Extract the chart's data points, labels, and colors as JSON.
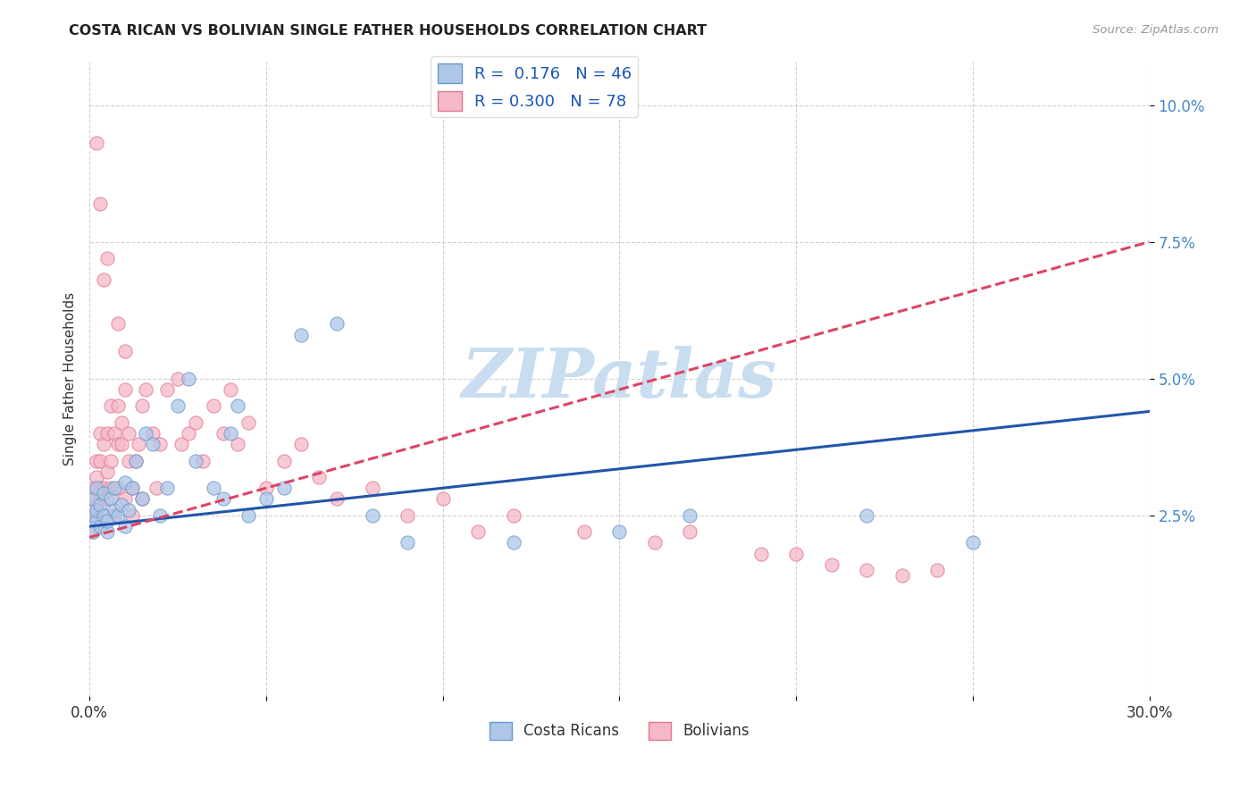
{
  "title": "COSTA RICAN VS BOLIVIAN SINGLE FATHER HOUSEHOLDS CORRELATION CHART",
  "source": "Source: ZipAtlas.com",
  "ylabel": "Single Father Households",
  "xlim": [
    0.0,
    0.3
  ],
  "ylim": [
    -0.008,
    0.108
  ],
  "ytick_vals": [
    0.025,
    0.05,
    0.075,
    0.1
  ],
  "ytick_labels": [
    "2.5%",
    "5.0%",
    "7.5%",
    "10.0%"
  ],
  "xtick_vals": [
    0.0,
    0.05,
    0.1,
    0.15,
    0.2,
    0.25,
    0.3
  ],
  "xtick_labels": [
    "0.0%",
    "",
    "",
    "",
    "",
    "",
    "30.0%"
  ],
  "background_color": "#ffffff",
  "watermark_text": "ZIPatlas",
  "watermark_color": "#c8ddf0",
  "costa_ricans_color": "#aec6e8",
  "costa_ricans_edge": "#6699cc",
  "bolivians_color": "#f5b8c8",
  "bolivians_edge": "#e07890",
  "cr_line_color": "#2255aa",
  "bo_line_color": "#dd4466",
  "cr_R": 0.176,
  "cr_N": 46,
  "bo_R": 0.3,
  "bo_N": 78,
  "cr_line_start_y": 0.023,
  "cr_line_end_y": 0.044,
  "bo_line_start_y": 0.021,
  "bo_line_end_y": 0.075,
  "cr_x": [
    0.001,
    0.001,
    0.001,
    0.002,
    0.002,
    0.002,
    0.003,
    0.003,
    0.004,
    0.004,
    0.005,
    0.005,
    0.006,
    0.007,
    0.007,
    0.008,
    0.009,
    0.01,
    0.01,
    0.011,
    0.012,
    0.013,
    0.015,
    0.016,
    0.018,
    0.02,
    0.022,
    0.025,
    0.028,
    0.03,
    0.035,
    0.038,
    0.04,
    0.042,
    0.045,
    0.05,
    0.055,
    0.06,
    0.07,
    0.08,
    0.09,
    0.12,
    0.15,
    0.17,
    0.22,
    0.25
  ],
  "cr_y": [
    0.025,
    0.022,
    0.028,
    0.024,
    0.026,
    0.03,
    0.023,
    0.027,
    0.025,
    0.029,
    0.022,
    0.024,
    0.028,
    0.026,
    0.03,
    0.025,
    0.027,
    0.023,
    0.031,
    0.026,
    0.03,
    0.035,
    0.028,
    0.04,
    0.038,
    0.025,
    0.03,
    0.045,
    0.05,
    0.035,
    0.03,
    0.028,
    0.04,
    0.045,
    0.025,
    0.028,
    0.03,
    0.058,
    0.06,
    0.025,
    0.02,
    0.02,
    0.022,
    0.025,
    0.025,
    0.02
  ],
  "bo_x": [
    0.001,
    0.001,
    0.001,
    0.001,
    0.002,
    0.002,
    0.002,
    0.002,
    0.003,
    0.003,
    0.003,
    0.003,
    0.004,
    0.004,
    0.004,
    0.005,
    0.005,
    0.005,
    0.006,
    0.006,
    0.006,
    0.007,
    0.007,
    0.008,
    0.008,
    0.008,
    0.009,
    0.009,
    0.01,
    0.01,
    0.011,
    0.011,
    0.012,
    0.012,
    0.013,
    0.014,
    0.015,
    0.015,
    0.016,
    0.018,
    0.019,
    0.02,
    0.022,
    0.025,
    0.026,
    0.028,
    0.03,
    0.032,
    0.035,
    0.038,
    0.04,
    0.042,
    0.045,
    0.05,
    0.055,
    0.06,
    0.065,
    0.07,
    0.08,
    0.09,
    0.1,
    0.11,
    0.12,
    0.14,
    0.16,
    0.17,
    0.19,
    0.2,
    0.21,
    0.22,
    0.23,
    0.24,
    0.01,
    0.008,
    0.005,
    0.003,
    0.002,
    0.004
  ],
  "bo_y": [
    0.028,
    0.025,
    0.03,
    0.022,
    0.027,
    0.032,
    0.025,
    0.035,
    0.028,
    0.04,
    0.03,
    0.035,
    0.025,
    0.03,
    0.038,
    0.028,
    0.033,
    0.04,
    0.045,
    0.03,
    0.035,
    0.04,
    0.025,
    0.038,
    0.045,
    0.03,
    0.038,
    0.042,
    0.028,
    0.048,
    0.035,
    0.04,
    0.025,
    0.03,
    0.035,
    0.038,
    0.045,
    0.028,
    0.048,
    0.04,
    0.03,
    0.038,
    0.048,
    0.05,
    0.038,
    0.04,
    0.042,
    0.035,
    0.045,
    0.04,
    0.048,
    0.038,
    0.042,
    0.03,
    0.035,
    0.038,
    0.032,
    0.028,
    0.03,
    0.025,
    0.028,
    0.022,
    0.025,
    0.022,
    0.02,
    0.022,
    0.018,
    0.018,
    0.016,
    0.015,
    0.014,
    0.015,
    0.055,
    0.06,
    0.072,
    0.082,
    0.093,
    0.068
  ]
}
